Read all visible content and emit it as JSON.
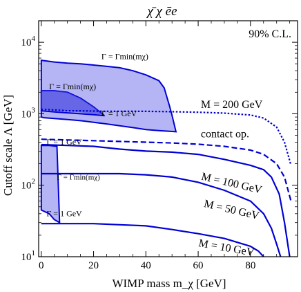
{
  "chart_data": {
    "type": "line",
    "title": "χ̄ χ ēe",
    "xlabel": "WIMP mass m_χ [GeV]",
    "ylabel": "Cutoff scale Λ [GeV]",
    "yscale": "log",
    "xlim": [
      -1,
      98
    ],
    "ylim": [
      10,
      20000
    ],
    "x_ticks": [
      "0",
      "20",
      "40",
      "60",
      "80"
    ],
    "y_ticks": [
      "10^1",
      "10^2",
      "10^3",
      "10^4"
    ],
    "corner_label": "90% C.L.",
    "colors": {
      "line": "#0000d4",
      "fill": "#7878ec",
      "fill_dark": "#4848e0",
      "frame": "#000000"
    },
    "series": [
      {
        "name": "M = 200 GeV",
        "style": "dotted",
        "x": [
          0,
          5,
          10,
          15,
          20,
          25,
          30,
          40,
          50,
          60,
          70,
          80,
          85,
          90,
          93,
          95.5
        ],
        "y": [
          1150,
          1130,
          1100,
          1100,
          1090,
          1080,
          1080,
          1080,
          1070,
          1050,
          1020,
          960,
          870,
          650,
          400,
          190
        ]
      },
      {
        "name": "contact op.",
        "style": "dashed",
        "x": [
          0,
          10,
          20,
          30,
          40,
          50,
          60,
          70,
          80,
          85,
          90,
          93,
          95.5
        ],
        "y": [
          440,
          430,
          420,
          410,
          400,
          390,
          375,
          350,
          310,
          270,
          200,
          130,
          60
        ]
      },
      {
        "name": "M = 100 GeV",
        "style": "solid",
        "x": [
          0,
          10,
          20,
          30,
          40,
          50,
          60,
          70,
          80,
          85,
          88,
          91,
          93,
          95
        ],
        "y": [
          370,
          360,
          350,
          320,
          300,
          290,
          270,
          230,
          190,
          165,
          130,
          75,
          30,
          10
        ]
      },
      {
        "name": "M = 50 GeV",
        "style": "solid",
        "x": [
          0,
          10,
          20,
          24,
          30,
          40,
          50,
          60,
          70,
          80,
          85,
          88,
          90,
          91.5
        ],
        "y": [
          145,
          145,
          145,
          145,
          145,
          140,
          130,
          110,
          85,
          60,
          40,
          25,
          15,
          10
        ]
      },
      {
        "name": "M = 10 GeV",
        "style": "solid",
        "x": [
          0,
          10,
          20,
          30,
          40,
          50,
          60,
          70,
          80,
          83,
          85
        ],
        "y": [
          29,
          29,
          29,
          28,
          27,
          24,
          21,
          18,
          14,
          12,
          10
        ]
      }
    ],
    "regions": [
      {
        "name": "Γ = Γmin(mχ)",
        "boundary_x": [
          0,
          5,
          10,
          15,
          20,
          25,
          30,
          35,
          40,
          45,
          47,
          49,
          50,
          51.5,
          51.5,
          45,
          40,
          35,
          30,
          25,
          20,
          15,
          10,
          5,
          1,
          0
        ],
        "boundary_y": [
          5600,
          5300,
          5100,
          5000,
          4800,
          4600,
          4400,
          4000,
          3500,
          2900,
          2300,
          1300,
          950,
          560,
          560,
          580,
          600,
          640,
          680,
          720,
          760,
          800,
          830,
          860,
          880,
          900
        ]
      },
      {
        "name": "Γ = Γmin(mχ)",
        "boundary_x": [
          0,
          5,
          10,
          15,
          20,
          24,
          24,
          20,
          15,
          10,
          5,
          0
        ],
        "boundary_y": [
          2100,
          2100,
          2000,
          1650,
          1250,
          950,
          940,
          970,
          1000,
          1030,
          1060,
          1100
        ]
      },
      {
        "name": "Γ = Γmin(mχ)",
        "boundary_x": [
          0,
          3,
          6,
          7,
          5,
          3,
          0
        ],
        "boundary_y": [
          360,
          360,
          350,
          30,
          33,
          40,
          45
        ]
      }
    ],
    "dark_overlap": {
      "boundary_x": [
        0,
        5,
        10,
        15,
        20,
        24,
        20,
        15,
        10,
        5,
        0
      ],
      "boundary_y": [
        2100,
        2100,
        2000,
        1650,
        1250,
        950,
        1000,
        1050,
        1080,
        1100,
        1150
      ]
    },
    "annotations": [
      {
        "text": "M = 200 GeV",
        "x": 61,
        "y": 1200,
        "size": 16,
        "rotate": 0
      },
      {
        "text": "contact op.",
        "x": 61,
        "y": 470,
        "size": 16,
        "rotate": 0
      },
      {
        "text": "M = 100 GeV",
        "x": 61,
        "y": 120,
        "size": 16,
        "rotate": 13
      },
      {
        "text": "M = 50 GeV",
        "x": 62,
        "y": 50,
        "size": 16,
        "rotate": 13
      },
      {
        "text": "M = 10 GeV",
        "x": 60,
        "y": 14,
        "size": 16,
        "rotate": 10
      },
      {
        "text": "Γ = Γmin(mχ)",
        "x": 23,
        "y": 5800,
        "size": 12,
        "rotate": 0
      },
      {
        "text": "Γ = Γmin(mχ)",
        "x": 3,
        "y": 2200,
        "size": 12,
        "rotate": 0
      },
      {
        "text": "Γ = 1 GeV",
        "x": 23,
        "y": 920,
        "size": 12,
        "rotate": 0
      },
      {
        "text": "Γ = 1 GeV",
        "x": 2,
        "y": 370,
        "size": 12,
        "rotate": 0
      },
      {
        "text": "Γ = Γmin(mχ)",
        "x": 6,
        "y": 120,
        "size": 11,
        "rotate": 0
      },
      {
        "text": "Γ = 1 GeV",
        "x": 2,
        "y": 37,
        "size": 12,
        "rotate": 0
      }
    ]
  }
}
